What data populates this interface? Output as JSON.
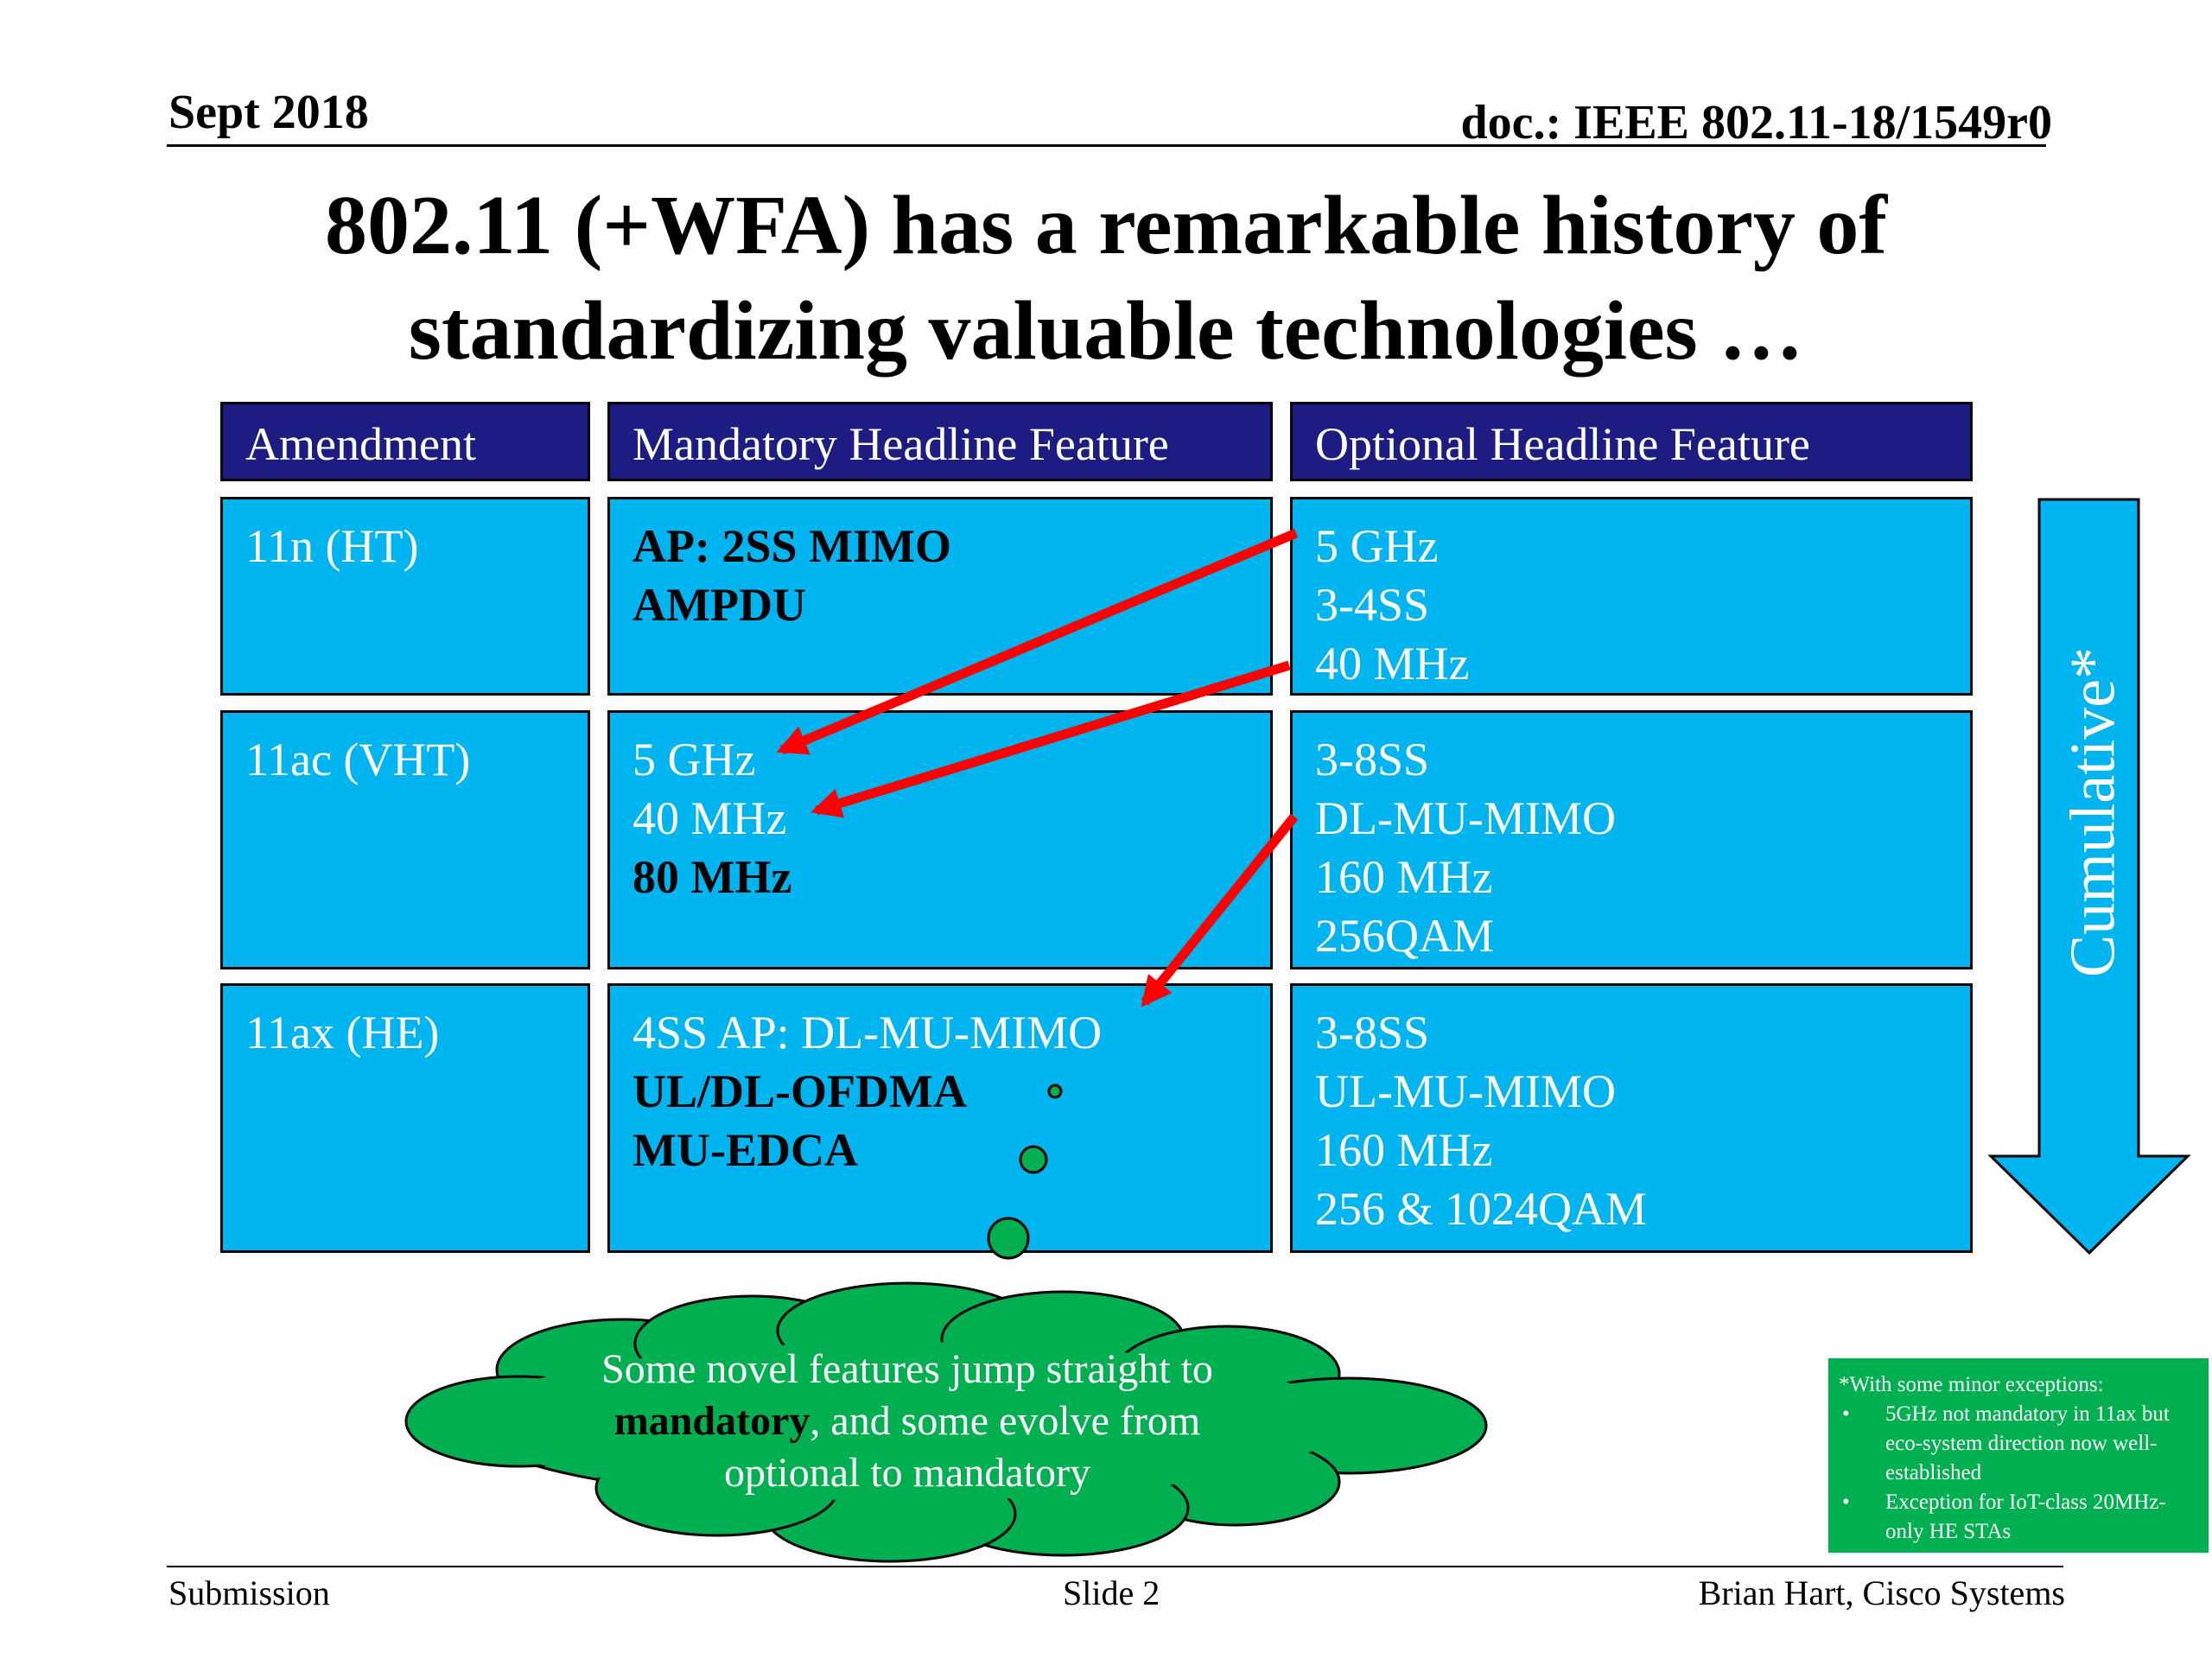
{
  "header": {
    "date": "Sept 2018",
    "doc_id": "doc.: IEEE 802.11-18/1549r0"
  },
  "title": {
    "line1": "802.11 (+WFA) has a remarkable history of",
    "line2": "standardizing valuable technologies …"
  },
  "table": {
    "columns": [
      "Amendment",
      "Mandatory Headline Feature",
      "Optional Headline Feature"
    ],
    "rows": [
      {
        "amendment": "11n (HT)",
        "mandatory": [
          {
            "text": "AP: 2SS MIMO",
            "bold": true
          },
          {
            "text": "AMPDU",
            "bold": true
          }
        ],
        "optional": [
          "5 GHz",
          "3-4SS",
          "40 MHz"
        ]
      },
      {
        "amendment": "11ac (VHT)",
        "mandatory": [
          {
            "text": "5 GHz",
            "bold": false
          },
          {
            "text": "40 MHz",
            "bold": false
          },
          {
            "text": "80 MHz",
            "bold": true
          }
        ],
        "optional": [
          "3-8SS",
          "DL-MU-MIMO",
          "160 MHz",
          "256QAM"
        ]
      },
      {
        "amendment": "11ax (HE)",
        "mandatory": [
          {
            "text": "4SS AP: DL-MU-MIMO",
            "bold": false
          },
          {
            "text": "UL/DL-OFDMA",
            "bold": true
          },
          {
            "text": "MU-EDCA",
            "bold": true
          }
        ],
        "optional": [
          "3-8SS",
          "UL-MU-MIMO",
          "160 MHz",
          "256 & 1024QAM"
        ]
      }
    ]
  },
  "cumulative_arrow": {
    "label": "Cumulative*",
    "color": "#00b4f0"
  },
  "cloud": {
    "line1": "Some novel features jump straight to",
    "line2_bold": "mandatory",
    "line2_rest": ", and some evolve from",
    "line3": "optional to mandatory",
    "color": "#00b050"
  },
  "footnote": {
    "intro": "*With some minor exceptions:",
    "items": [
      "5GHz not mandatory in 11ax but eco-system direction now well-established",
      "Exception for IoT-class 20MHz-only HE STAs"
    ]
  },
  "footer": {
    "left": "Submission",
    "center": "Slide 2",
    "right": "Brian Hart, Cisco Systems"
  },
  "colors": {
    "header_cell": "#1c1c82",
    "body_cell": "#00b4f0",
    "arrow_red": "#ff0000",
    "green": "#00b050"
  }
}
